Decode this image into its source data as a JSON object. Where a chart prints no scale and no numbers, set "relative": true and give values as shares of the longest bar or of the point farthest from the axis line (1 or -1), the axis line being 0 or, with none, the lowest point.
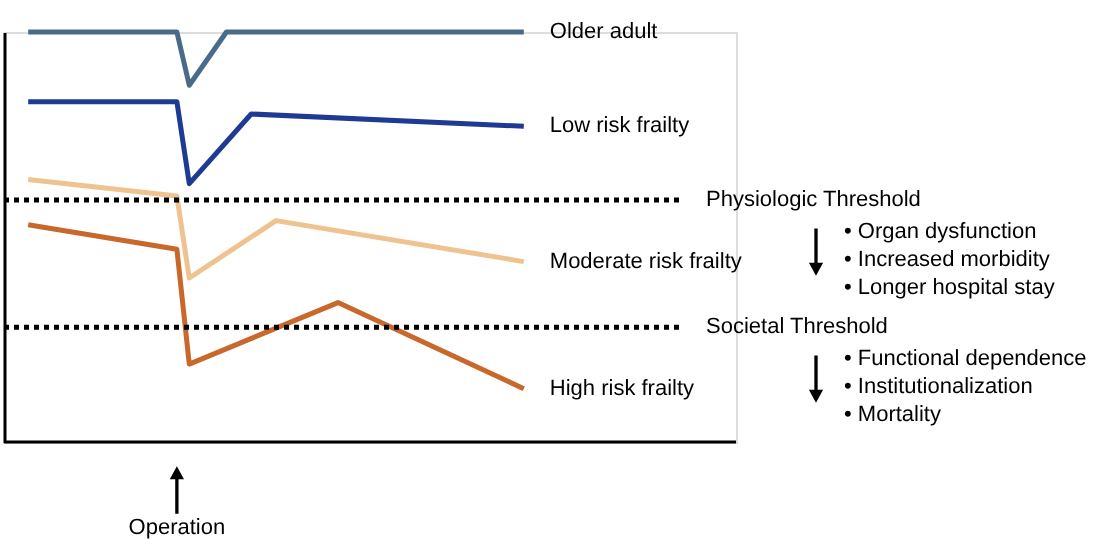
{
  "chart_data": {
    "type": "line",
    "relative": true,
    "marker": "none",
    "line_style": "solid",
    "categories": [
      null,
      null,
      null,
      null,
      null,
      null,
      null,
      null,
      null,
      null,
      null,
      null,
      null,
      null,
      null,
      null,
      null,
      null,
      null,
      null,
      null,
      null,
      null,
      null,
      null,
      null,
      null,
      null,
      null,
      null,
      null,
      null,
      null,
      null,
      null,
      null,
      null,
      null,
      null,
      null,
      null
    ],
    "series": [
      {
        "name": "Older adult",
        "color": "#4a6a8a",
        "values": [
          1.0,
          null,
          null,
          null,
          null,
          null,
          null,
          null,
          null,
          null,
          null,
          null,
          1.0,
          0.87,
          null,
          null,
          1.0,
          null,
          null,
          null,
          null,
          null,
          null,
          null,
          null,
          null,
          null,
          null,
          null,
          null,
          null,
          null,
          null,
          null,
          null,
          null,
          null,
          null,
          null,
          null,
          1.0
        ]
      },
      {
        "name": "Low risk frailty",
        "color": "#1f3a93",
        "values": [
          0.83,
          null,
          null,
          null,
          null,
          null,
          null,
          null,
          null,
          null,
          null,
          null,
          0.83,
          0.63,
          null,
          null,
          null,
          null,
          0.8,
          null,
          null,
          null,
          null,
          null,
          null,
          null,
          null,
          null,
          null,
          null,
          null,
          null,
          null,
          null,
          null,
          null,
          null,
          null,
          null,
          null,
          0.77
        ]
      },
      {
        "name": "Moderate risk frailty",
        "color": "#efc38f",
        "values": [
          0.64,
          null,
          null,
          null,
          null,
          null,
          null,
          null,
          null,
          null,
          null,
          null,
          0.6,
          0.4,
          null,
          null,
          null,
          null,
          null,
          null,
          0.54,
          null,
          null,
          null,
          null,
          null,
          null,
          null,
          null,
          null,
          null,
          null,
          null,
          null,
          null,
          null,
          null,
          null,
          null,
          null,
          0.44
        ]
      },
      {
        "name": "High risk frailty",
        "color": "#c8682a",
        "values": [
          0.53,
          null,
          null,
          null,
          null,
          null,
          null,
          null,
          null,
          null,
          null,
          null,
          0.47,
          0.19,
          null,
          null,
          null,
          null,
          null,
          null,
          null,
          null,
          null,
          null,
          null,
          0.34,
          null,
          null,
          null,
          null,
          null,
          null,
          null,
          null,
          null,
          null,
          null,
          null,
          null,
          null,
          0.13
        ]
      }
    ],
    "ref_lines": [
      {
        "axis": "y",
        "value": 0.59,
        "label": "Physiologic Threshold",
        "color": "#000000",
        "line_style": "dotted"
      },
      {
        "axis": "y",
        "value": 0.28,
        "label": "Societal Threshold",
        "color": "#000000",
        "line_style": "dotted"
      }
    ],
    "annotations": [
      "Operation",
      "• Organ dysfunction\n• Increased morbidity\n• Longer hospital stay",
      "• Functional dependence\n• Institutionalization\n• Mortality"
    ]
  }
}
